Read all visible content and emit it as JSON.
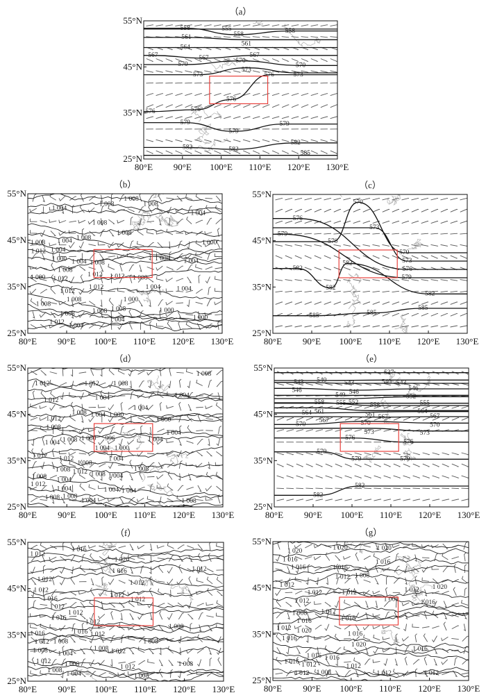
{
  "figure": {
    "lon_ticks": [
      "80°E",
      "90°E",
      "100°E",
      "110°E",
      "120°E",
      "130°E"
    ],
    "lat_ticks": [
      "25°N",
      "35°N",
      "45°N",
      "55°N"
    ],
    "lon_values": [
      80,
      90,
      100,
      110,
      120,
      130
    ],
    "lat_values": [
      25,
      35,
      45,
      55
    ],
    "extent": {
      "lon": [
        80,
        130
      ],
      "lat": [
        25,
        55
      ]
    },
    "highlight_region": {
      "lon": [
        97,
        112
      ],
      "lat": [
        37,
        43
      ],
      "color": "#e8413c"
    },
    "panels": [
      {
        "id": "a",
        "title": "（a）",
        "field": "geopotential",
        "labels": [
          [
            "558",
            90.7,
            53.4
          ],
          [
            "555",
            101.4,
            53.2
          ],
          [
            "558",
            103.8,
            52
          ],
          [
            "561",
            106.5,
            50.9
          ],
          [
            "558",
            117.8,
            52.8
          ],
          [
            "561",
            91,
            51.4
          ],
          [
            "564",
            90.7,
            49.2
          ],
          [
            "567",
            82.4,
            47.5
          ],
          [
            "567",
            95.5,
            46.9
          ],
          [
            "567",
            108.6,
            47.5
          ],
          [
            "570",
            105,
            46.3
          ],
          [
            "570",
            90.1,
            45.5
          ],
          [
            "573",
            106.5,
            44.8
          ],
          [
            "570",
            120.5,
            45.3
          ],
          [
            "573",
            119.9,
            43.7
          ],
          [
            "573",
            94,
            43.3
          ],
          [
            "576",
            112.4,
            43.3
          ],
          [
            "576",
            102.6,
            37.9
          ],
          [
            "576",
            93.4,
            35.7
          ],
          [
            "576",
            81.7,
            35.3
          ],
          [
            "579",
            90.7,
            32.9
          ],
          [
            "579",
            103.2,
            31
          ],
          [
            "579",
            116.3,
            32.6
          ],
          [
            "582",
            91.3,
            27.5
          ],
          [
            "582",
            103.2,
            27.1
          ],
          [
            "582",
            119.2,
            28.5
          ],
          [
            "585",
            121.7,
            25.8
          ]
        ]
      },
      {
        "id": "b",
        "title": "（b）",
        "field": "pressure",
        "labels": [
          [
            "1 008",
            106.6,
            54.3
          ],
          [
            "1 008",
            100.3,
            52.7
          ],
          [
            "1 008",
            111.6,
            52.7
          ],
          [
            "1 004",
            88.1,
            51.8
          ],
          [
            "1 004",
            123.8,
            50.8
          ],
          [
            "1 008",
            98.5,
            48.7
          ],
          [
            "1 008",
            104.8,
            46.5
          ],
          [
            "1 008",
            94.4,
            45.5
          ],
          [
            "1 008",
            81.9,
            44.4
          ],
          [
            "1 000",
            126.7,
            44.4
          ],
          [
            "1 004",
            90.2,
            44.8
          ],
          [
            "1 012",
            82.2,
            43
          ],
          [
            "1 004",
            87.8,
            42.9
          ],
          [
            "1 000",
            88.1,
            40.9
          ],
          [
            "1 004",
            93.2,
            40.3
          ],
          [
            "1 008",
            97.9,
            40.1
          ],
          [
            "1 008",
            114.6,
            41
          ],
          [
            "1 004",
            122,
            40.5
          ],
          [
            "1 008",
            89.6,
            39.4
          ],
          [
            "1 012",
            88.4,
            38
          ],
          [
            "1 000",
            81.9,
            37
          ],
          [
            "1 012",
            97.3,
            37.6
          ],
          [
            "1 012",
            103,
            37.2
          ],
          [
            "1 008",
            108.9,
            36.9
          ],
          [
            "1 012",
            97.6,
            34.9
          ],
          [
            "1 004",
            112.2,
            34.9
          ],
          [
            "1 004",
            120.2,
            34.5
          ],
          [
            "1 012",
            90.2,
            34
          ],
          [
            "1 008",
            91.9,
            32.2
          ],
          [
            "1 008",
            84,
            31.2
          ],
          [
            "1 000",
            106.5,
            32.2
          ],
          [
            "1 008",
            98.5,
            29.7
          ],
          [
            "1 008",
            102.6,
            30.2
          ],
          [
            "1 000",
            115.7,
            29.9
          ],
          [
            "1 000",
            124.4,
            28.3
          ],
          [
            "1 008",
            90.2,
            29.1
          ],
          [
            "1 012",
            87.5,
            27.8
          ],
          [
            "1 004",
            103,
            27.9
          ],
          [
            "1 004",
            88.1,
            26.6
          ]
        ]
      },
      {
        "id": "c",
        "title": "（c）",
        "field": "geopotential",
        "labels": [
          [
            "570",
            101.9,
            53.3
          ],
          [
            "576",
            86.4,
            49.8
          ],
          [
            "573",
            106.1,
            47.8
          ],
          [
            "579",
            82.5,
            46.4
          ],
          [
            "570",
            95.4,
            44.8
          ],
          [
            "570",
            113.8,
            42.4
          ],
          [
            "573",
            114.5,
            40.6
          ],
          [
            "582",
            99.2,
            40.1
          ],
          [
            "576",
            114.6,
            38.8
          ],
          [
            "582",
            86.4,
            39
          ],
          [
            "579",
            114.4,
            37
          ],
          [
            "582",
            94.9,
            34.8
          ],
          [
            "582",
            120.4,
            33.5
          ],
          [
            "585",
            118.6,
            30.4
          ],
          [
            "585",
            90.6,
            28.8
          ],
          [
            "585",
            105.4,
            29.4
          ]
        ]
      },
      {
        "id": "d",
        "title": "（d）",
        "field": "pressure",
        "labels": [
          [
            "1 008",
            125.1,
            54.6
          ],
          [
            "1 012",
            83.7,
            51.6
          ],
          [
            "1 012",
            96.4,
            51.6
          ],
          [
            "1 008",
            103.8,
            51.6
          ],
          [
            "1 004",
            99.1,
            48.5
          ],
          [
            "1 004",
            119.5,
            49
          ],
          [
            "1 012",
            86,
            48
          ],
          [
            "1 004",
            108.9,
            46.3
          ],
          [
            "1 008",
            93.2,
            45.3
          ],
          [
            "1 004",
            97.3,
            44.8
          ],
          [
            "1 000",
            102,
            44.8
          ],
          [
            "1 012",
            86.6,
            44
          ],
          [
            "1 000",
            114.8,
            43.8
          ],
          [
            "1 008",
            86.6,
            42.1
          ],
          [
            "1 004",
            117.4,
            40.9
          ],
          [
            "1 008",
            90.8,
            39.4
          ],
          [
            "1 000",
            94.9,
            39.7
          ],
          [
            "996",
            101.1,
            39.7
          ],
          [
            "1 004",
            112.7,
            39.5
          ],
          [
            "1 004",
            86.3,
            38.8
          ],
          [
            "1 004",
            99.1,
            37.6
          ],
          [
            "1 000",
            104.1,
            37.6
          ],
          [
            "1 012",
            83.1,
            36
          ],
          [
            "1 012",
            89.9,
            35.4
          ],
          [
            "1 004",
            102.6,
            35.3
          ],
          [
            "1 008",
            94.6,
            34.4
          ],
          [
            "1 008",
            89,
            33
          ],
          [
            "1 012",
            93.4,
            32.5
          ],
          [
            "1 008",
            97.3,
            32
          ],
          [
            "1 004",
            101.1,
            31.6
          ],
          [
            "1 008",
            109.1,
            33.1
          ],
          [
            "1 008",
            82.2,
            31.5
          ],
          [
            "1 004",
            89.3,
            30.8
          ],
          [
            "1 012",
            81.9,
            29.8
          ],
          [
            "1 004",
            89.3,
            29.3
          ],
          [
            "1 008",
            90.8,
            28.1
          ],
          [
            "1 004",
            101.4,
            28.6
          ],
          [
            "1 004",
            105.9,
            28.4
          ],
          [
            "1 008",
            86.3,
            27.4
          ],
          [
            "1 004",
            92,
            26.3
          ],
          [
            "1 008",
            121.3,
            25.8
          ]
        ]
      },
      {
        "id": "e",
        "title": "（e）",
        "field": "geopotential",
        "labels": [
          [
            "537",
            109.5,
            54
          ],
          [
            "540",
            92.2,
            52.3
          ],
          [
            "540",
            108.9,
            52.4
          ],
          [
            "543",
            86.3,
            51.9
          ],
          [
            "543",
            99.3,
            51.7
          ],
          [
            "543",
            112.7,
            51.7
          ],
          [
            "546",
            85.8,
            50.6
          ],
          [
            "546",
            100.5,
            50.2
          ],
          [
            "546",
            115.8,
            50.5
          ],
          [
            "549",
            97,
            49.1
          ],
          [
            "552",
            99.3,
            48.4
          ],
          [
            "552",
            115.2,
            48.8
          ],
          [
            "558",
            91.6,
            47.5
          ],
          [
            "555",
            99.3,
            47.4
          ],
          [
            "558",
            105.9,
            46.9
          ],
          [
            "555",
            118.7,
            47.4
          ],
          [
            "561",
            91.6,
            46.4
          ],
          [
            "561",
            104.7,
            45.8
          ],
          [
            "564",
            89.8,
            45.3
          ],
          [
            "564",
            118.1,
            45.6
          ],
          [
            "567",
            92.8,
            44.5
          ],
          [
            "567",
            108,
            44.4
          ],
          [
            "567",
            121.3,
            44.5
          ],
          [
            "570",
            86.8,
            42.8
          ],
          [
            "570",
            103.5,
            43.5
          ],
          [
            "570",
            121.3,
            43.1
          ],
          [
            "573",
            104.4,
            42
          ],
          [
            "573",
            118.7,
            41.4
          ],
          [
            "576",
            99.5,
            39.9
          ],
          [
            "576",
            114.5,
            39
          ],
          [
            "579",
            92.2,
            36.9
          ],
          [
            "579",
            101.1,
            35.3
          ],
          [
            "579",
            113.6,
            35.3
          ],
          [
            "582",
            102,
            29.5
          ],
          [
            "582",
            91.3,
            27.5
          ]
        ]
      },
      {
        "id": "f",
        "title": "（f）",
        "field": "pressure",
        "labels": [
          [
            "1 016",
            93.1,
            53.4
          ],
          [
            "1 012",
            82.5,
            52.4
          ],
          [
            "1 020",
            104,
            51.2
          ],
          [
            "1 016",
            103.4,
            48.7
          ],
          [
            "1 012",
            123.8,
            49.2
          ],
          [
            "1 012",
            84.3,
            46.9
          ],
          [
            "1 012",
            107.9,
            46.2
          ],
          [
            "1 012",
            83.4,
            44.6
          ],
          [
            "1 016",
            85.7,
            43.2
          ],
          [
            "1 012",
            102.8,
            43.5
          ],
          [
            "1 012",
            108.1,
            42.6
          ],
          [
            "1 012",
            87.5,
            41.9
          ],
          [
            "1 012",
            92.2,
            39.7
          ],
          [
            "1 016",
            88.6,
            38.6
          ],
          [
            "1 012",
            96.6,
            37.7
          ],
          [
            "1 008",
            117.9,
            36.7
          ],
          [
            "1 016",
            82.5,
            35.2
          ],
          [
            "1 016",
            93.4,
            35.6
          ],
          [
            "1 012",
            97.8,
            35.1
          ],
          [
            "1 012",
            83.6,
            33.9
          ],
          [
            "1 008",
            88.4,
            33.5
          ],
          [
            "1 008",
            111.4,
            33.5
          ],
          [
            "1 008",
            83.2,
            32
          ],
          [
            "1 008",
            98.7,
            32
          ],
          [
            "1 012",
            103.1,
            31.4
          ],
          [
            "1 004",
            89.6,
            30.9
          ],
          [
            "1 012",
            84,
            29.2
          ],
          [
            "1 008",
            91.3,
            28.6
          ],
          [
            "1 008",
            120.3,
            28.6
          ],
          [
            "1 008",
            86.9,
            27.7
          ],
          [
            "1 012",
            105.5,
            28
          ],
          [
            "1 004",
            88.9,
            26.5
          ],
          [
            "1 008",
            109,
            26.5
          ]
        ]
      },
      {
        "id": "g",
        "title": "（g）",
        "field": "pressure",
        "labels": [
          [
            "1 020",
            85.6,
            52.9
          ],
          [
            "1 020",
            97.2,
            53.6
          ],
          [
            "1 020",
            108.4,
            53.5
          ],
          [
            "1 016",
            84.4,
            51.5
          ],
          [
            "1 016",
            86.5,
            50.3
          ],
          [
            "1 016",
            108.1,
            50.5
          ],
          [
            "1 016",
            97.2,
            49.3
          ],
          [
            "1 012",
            97.8,
            47.3
          ],
          [
            "1 008",
            102.8,
            47.6
          ],
          [
            "1 012",
            83.6,
            45.6
          ],
          [
            "1 012",
            90.7,
            43.9
          ],
          [
            "1 012",
            99.5,
            43.9
          ],
          [
            "1 012",
            115.5,
            44.5
          ],
          [
            "1 020",
            122.6,
            45.1
          ],
          [
            "1 012",
            87.4,
            42.1
          ],
          [
            "1 008",
            110.2,
            42.5
          ],
          [
            "1 016",
            119.6,
            41.8
          ],
          [
            "1 008",
            86.8,
            39.5
          ],
          [
            "1 012",
            94.2,
            39.8
          ],
          [
            "1 016",
            88,
            38.2
          ],
          [
            "1 016",
            99.2,
            38.3
          ],
          [
            "1 012",
            82.1,
            36.3
          ],
          [
            "1 020",
            88,
            36.6
          ],
          [
            "1 016",
            84.2,
            34.5
          ],
          [
            "1 016",
            101,
            35
          ],
          [
            "1 020",
            101.9,
            32.7
          ],
          [
            "1 016",
            117.6,
            31.8
          ],
          [
            "1 016",
            90.5,
            30.3
          ],
          [
            "1 016",
            95.1,
            29.8
          ],
          [
            "1 016",
            84.8,
            29
          ],
          [
            "1 012",
            89.2,
            28.8
          ],
          [
            "1 012",
            100.6,
            28
          ],
          [
            "1 012",
            87.4,
            27.4
          ],
          [
            "1 008",
            93,
            27.1
          ],
          [
            "1 012",
            108.4,
            26.5
          ],
          [
            "1 012",
            120.5,
            26.5
          ]
        ]
      }
    ]
  }
}
